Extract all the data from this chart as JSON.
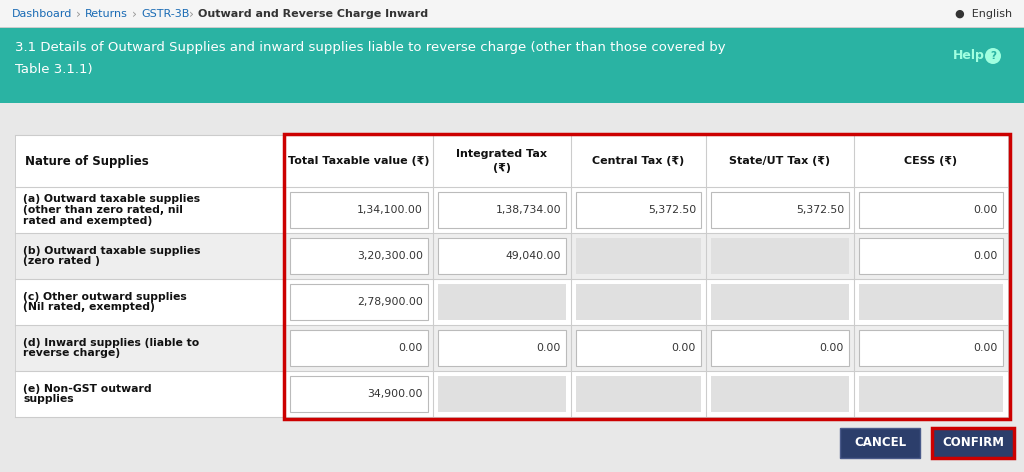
{
  "col_headers": [
    "Nature of Supplies",
    "Total Taxable value (₹)",
    "Integrated Tax\n(₹)",
    "Central Tax (₹)",
    "State/UT Tax (₹)",
    "CESS (₹)"
  ],
  "rows": [
    {
      "label": "(a) Outward taxable supplies\n(other than zero rated, nil\nrated and exempted)",
      "values": [
        "1,34,100.00",
        "1,38,734.00",
        "5,372.50",
        "5,372.50",
        "0.00"
      ],
      "disabled": [
        false,
        false,
        false,
        false,
        false
      ]
    },
    {
      "label": "(b) Outward taxable supplies\n(zero rated )",
      "values": [
        "3,20,300.00",
        "49,040.00",
        "",
        "",
        "0.00"
      ],
      "disabled": [
        false,
        false,
        true,
        true,
        false
      ]
    },
    {
      "label": "(c) Other outward supplies\n(Nil rated, exempted)",
      "values": [
        "2,78,900.00",
        "",
        "",
        "",
        ""
      ],
      "disabled": [
        false,
        true,
        true,
        true,
        true
      ]
    },
    {
      "label": "(d) Inward supplies (liable to\nreverse charge)",
      "values": [
        "0.00",
        "0.00",
        "0.00",
        "0.00",
        "0.00"
      ],
      "disabled": [
        false,
        false,
        false,
        false,
        false
      ]
    },
    {
      "label": "(e) Non-GST outward\nsupplies",
      "values": [
        "34,900.00",
        "",
        "",
        "",
        ""
      ],
      "disabled": [
        false,
        true,
        true,
        true,
        true
      ]
    }
  ],
  "bg_color": "#e8e8e8",
  "header_bg": "#2ab3a3",
  "nav_bg": "#f5f5f5",
  "cell_bg_white": "#ffffff",
  "cell_bg_disabled": "#e0e0e0",
  "red_border": "#cc0000",
  "cancel_btn_bg": "#2c3e6b",
  "confirm_btn_bg": "#2c3e6b"
}
